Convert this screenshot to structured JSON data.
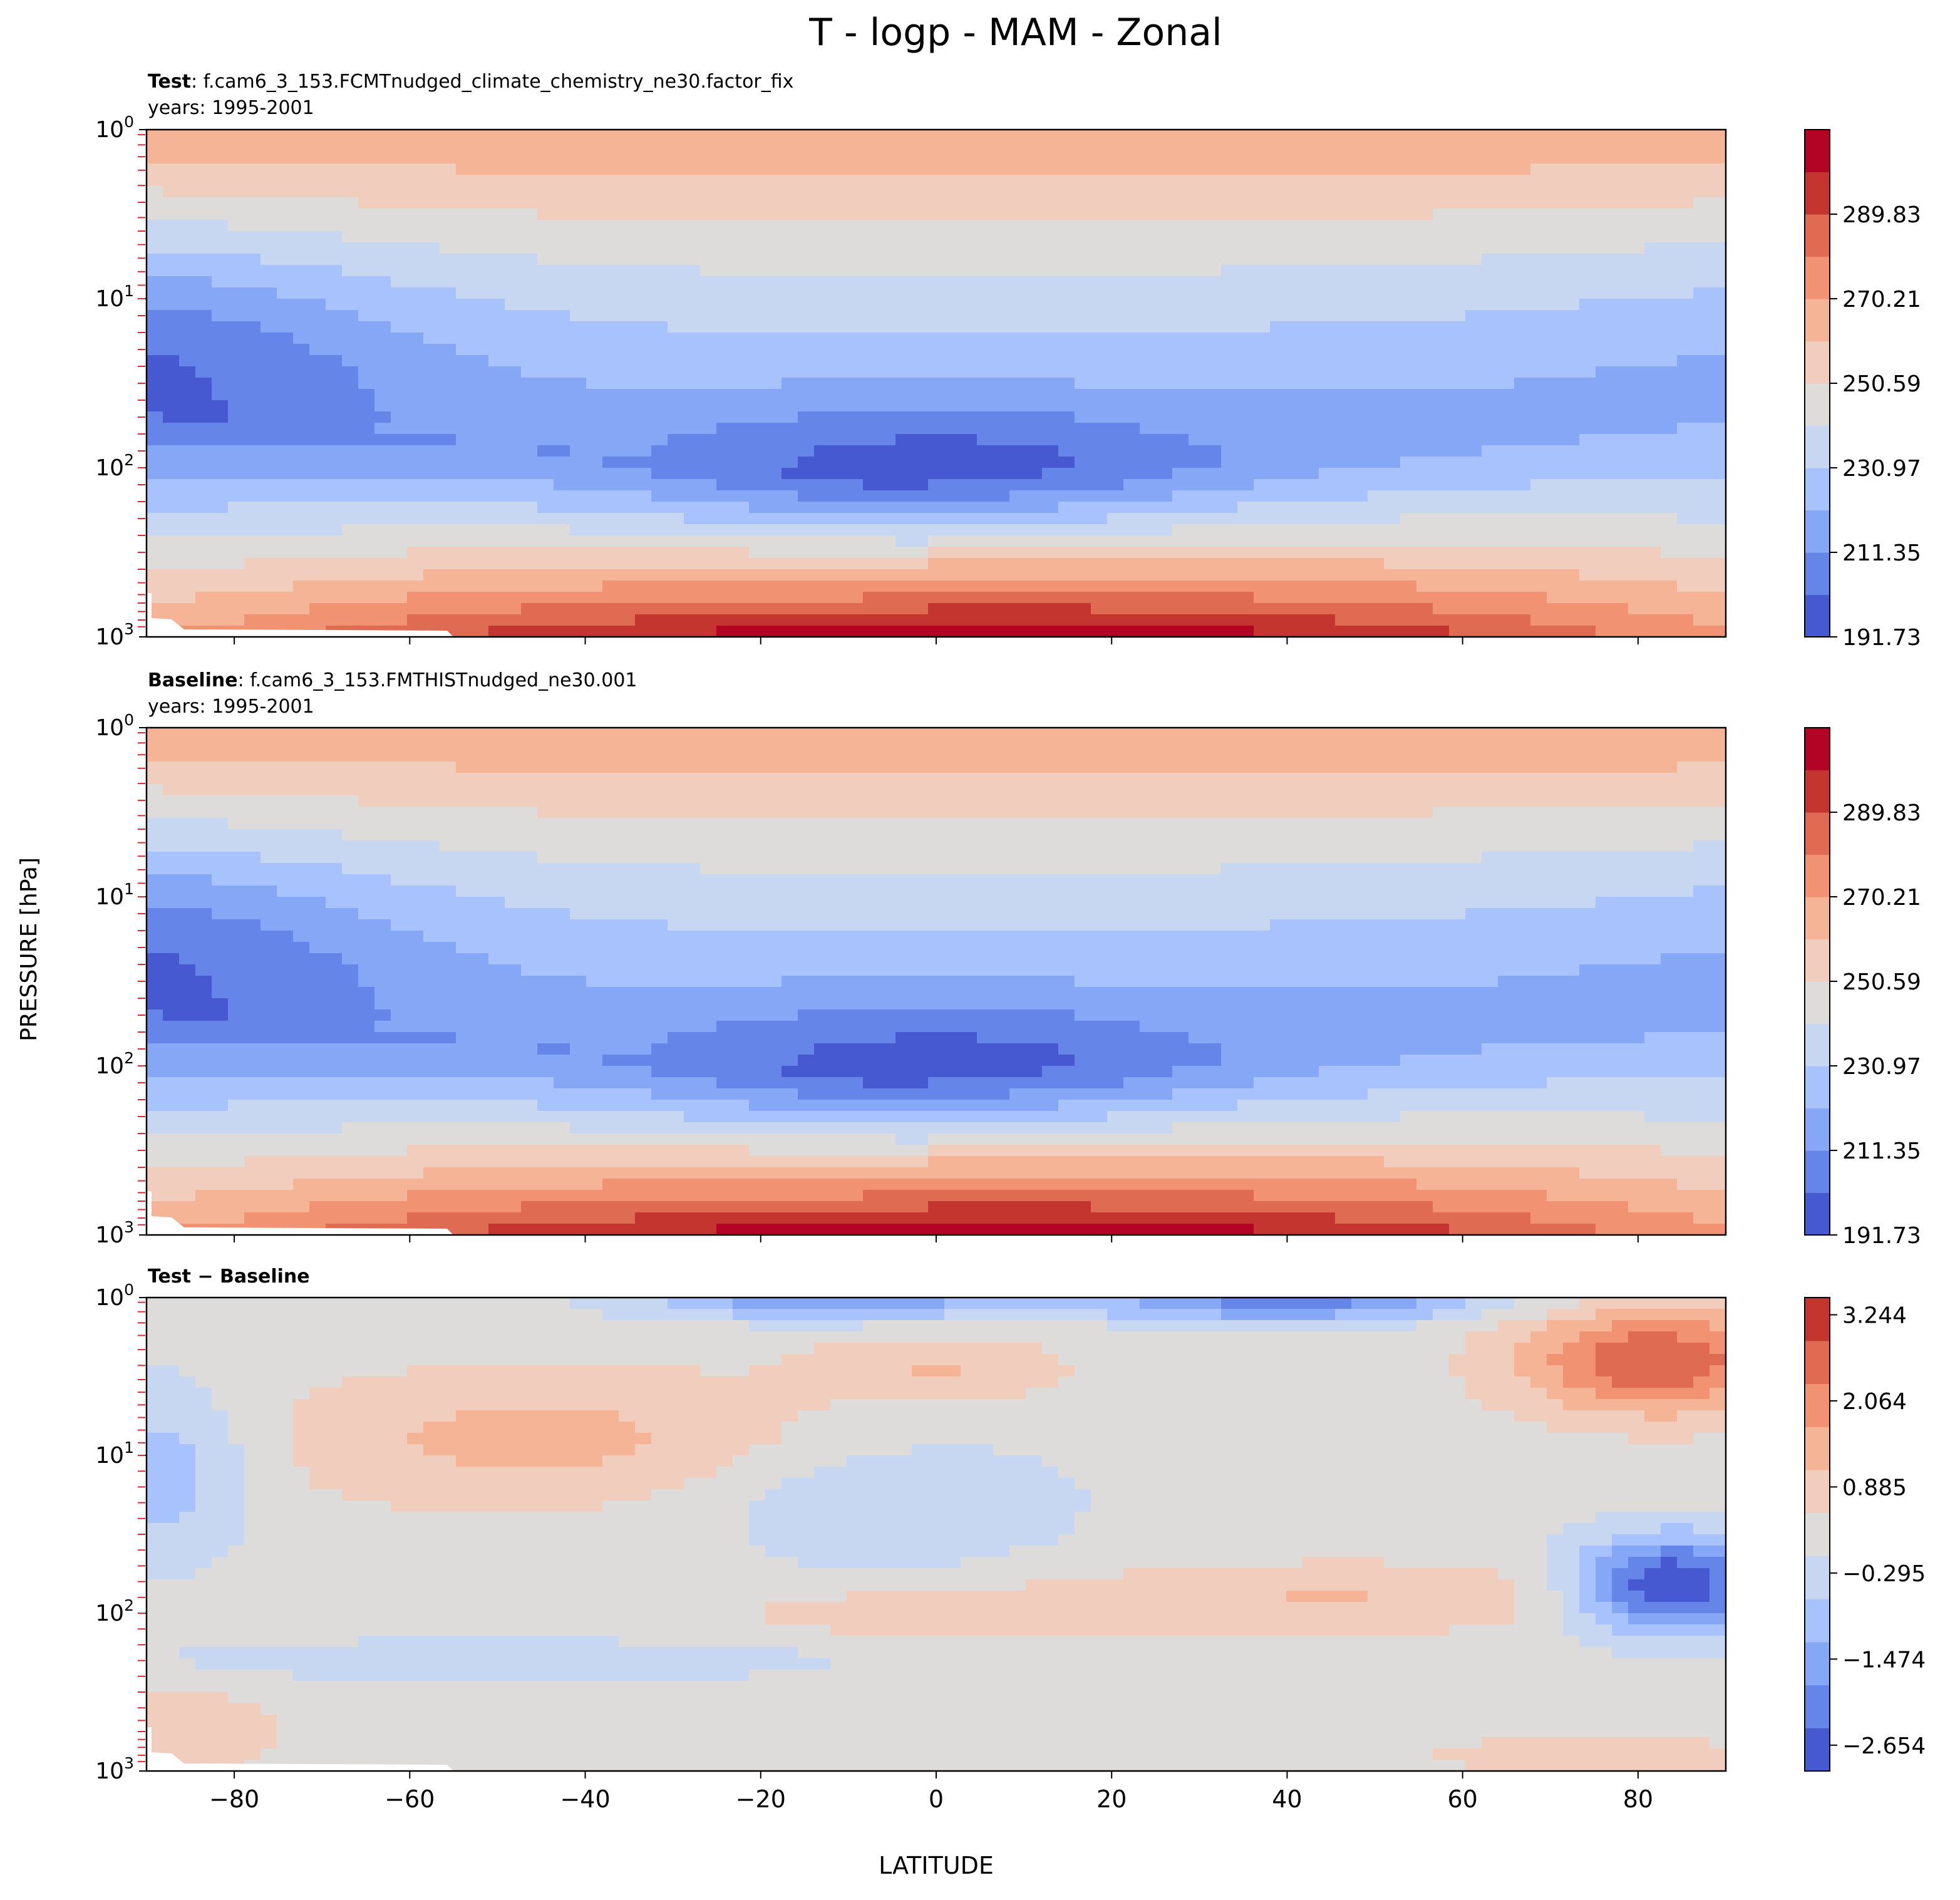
{
  "figure": {
    "title": "T - logp - MAM - Zonal",
    "ylabel": "PRESSURE [hPa]",
    "xlabel": "LATITUDE"
  },
  "chart_data": [
    {
      "type": "contour",
      "panel": "test",
      "title_bold": "Test",
      "title_rest": ": f.cam6_3_153.FCMTnudged_climate_chemistry_ne30.factor_fix",
      "subtitle": "years: 1995-2001",
      "x": {
        "label": "LATITUDE",
        "range": [
          -90,
          90
        ],
        "ticks": [
          -80,
          -60,
          -40,
          -20,
          0,
          20,
          40,
          60,
          80
        ]
      },
      "y": {
        "label": "PRESSURE [hPa]",
        "scale": "log",
        "range": [
          1000,
          1
        ],
        "ticks": [
          "10^0",
          "10^1",
          "10^2",
          "10^3"
        ]
      },
      "colorbar": {
        "min": 191.73,
        "max": 299.64,
        "levels": 12,
        "tick_labels": [
          "191.73",
          "211.35",
          "230.97",
          "250.59",
          "270.21",
          "289.83"
        ]
      },
      "features": {
        "tropopause_min_K": 195,
        "tropopause_center_hPa": 90,
        "tropopause_lat_range": [
          -27,
          27
        ],
        "surface_max_K": 299,
        "stratopause_max_K": 266
      }
    },
    {
      "type": "contour",
      "panel": "baseline",
      "title_bold": "Baseline",
      "title_rest": ": f.cam6_3_153.FMTHISTnudged_ne30.001",
      "subtitle": "years: 1995-2001",
      "x": {
        "label": "LATITUDE",
        "range": [
          -90,
          90
        ],
        "ticks": [
          -80,
          -60,
          -40,
          -20,
          0,
          20,
          40,
          60,
          80
        ]
      },
      "y": {
        "label": "PRESSURE [hPa]",
        "scale": "log",
        "range": [
          1000,
          1
        ],
        "ticks": [
          "10^0",
          "10^1",
          "10^2",
          "10^3"
        ]
      },
      "colorbar": {
        "min": 191.73,
        "max": 299.64,
        "levels": 12,
        "tick_labels": [
          "191.73",
          "211.35",
          "230.97",
          "250.59",
          "270.21",
          "289.83"
        ]
      },
      "features": {
        "tropopause_min_K": 195,
        "tropopause_center_hPa": 90,
        "tropopause_lat_range": [
          -28,
          28
        ],
        "surface_max_K": 299,
        "stratopause_max_K": 266
      }
    },
    {
      "type": "contour",
      "panel": "difference",
      "title_bold": "Test − Baseline",
      "title_rest": "",
      "subtitle": "",
      "x": {
        "label": "LATITUDE",
        "range": [
          -90,
          90
        ],
        "ticks": [
          -80,
          -60,
          -40,
          -20,
          0,
          20,
          40,
          60,
          80
        ]
      },
      "y": {
        "label": "PRESSURE [hPa]",
        "scale": "log",
        "range": [
          1000,
          1
        ],
        "ticks": [
          "10^0",
          "10^1",
          "10^2",
          "10^3"
        ]
      },
      "colorbar": {
        "min": -3.244,
        "max": 3.244,
        "levels": 11,
        "tick_labels": [
          "3.244",
          "2.064",
          "0.885",
          "−0.295",
          "−1.474",
          "−2.654"
        ]
      },
      "features": {
        "arctic_lower_strat_cold_min": -3.0,
        "arctic_upper_warm_max": 2.6,
        "upper_band_cold_min": -2.4
      }
    }
  ]
}
